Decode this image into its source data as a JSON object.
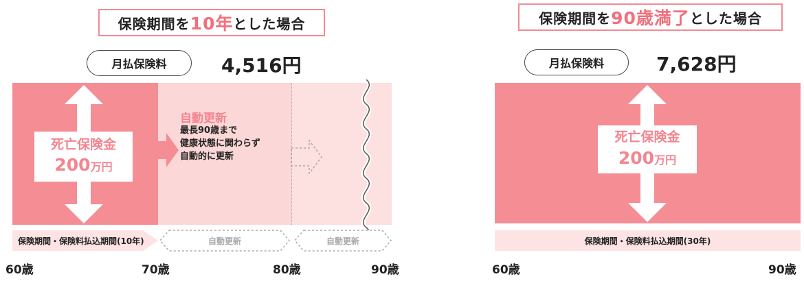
{
  "left": {
    "title_prefix": "保険期間を",
    "title_highlight": "10年",
    "title_suffix": "とした場合",
    "premium_label": "月払保険料",
    "premium_value": "4,516円",
    "death_benefit_label": "死亡保険金",
    "death_benefit_amount": "200",
    "death_benefit_unit": "万円",
    "renewal_title": "自動更新",
    "renewal_lines": [
      "最長90歳まで",
      "健康状態に関わらず",
      "自動的に更新"
    ],
    "period_label": "保険期間・保険料払込期間(10年)",
    "auto_renew_label_1": "自動更新",
    "auto_renew_label_2": "自動更新",
    "ages": [
      "60歳",
      "70歳",
      "80歳",
      "90歳"
    ]
  },
  "right": {
    "title_prefix": "保険期間を",
    "title_highlight": "90歳満了",
    "title_suffix": "とした場合",
    "premium_label": "月払保険料",
    "premium_value": "7,628円",
    "death_benefit_label": "死亡保険金",
    "death_benefit_amount": "200",
    "death_benefit_unit": "万円",
    "period_label": "保険期間・保険料払込期間(30年)",
    "ages": [
      "60歳",
      "90歳"
    ]
  },
  "colors": {
    "main_pink": "#f58d95",
    "light_pink": "#fcd7d7",
    "lighter_pink": "#fde3e3",
    "accent": "#f26f7c"
  }
}
